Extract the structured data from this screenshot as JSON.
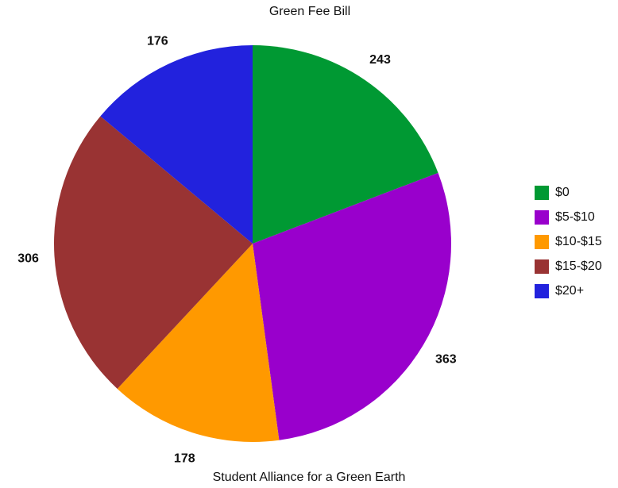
{
  "chart_data": {
    "type": "pie",
    "title": "Green Fee Bill",
    "subtitle": "Student Alliance for a Green Earth",
    "categories": [
      "$0",
      "$5-$10",
      "$10-$15",
      "$15-$20",
      "$20+"
    ],
    "values": [
      243,
      363,
      178,
      306,
      176
    ],
    "colors": [
      "#009933",
      "#9900cc",
      "#ff9900",
      "#993333",
      "#2222dd"
    ],
    "data_labels": [
      "243",
      "363",
      "178",
      "306",
      "176"
    ],
    "legend": "right",
    "start_angle": "12 o'clock, clockwise"
  }
}
